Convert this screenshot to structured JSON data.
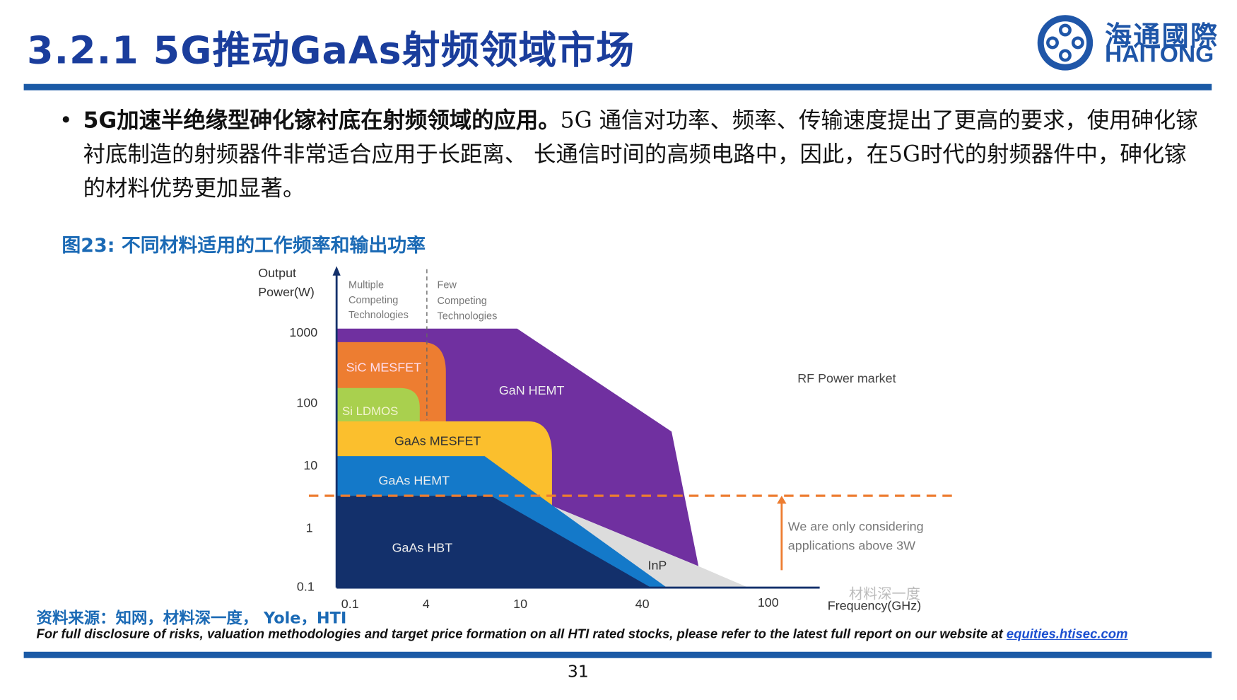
{
  "header": {
    "title": "3.2.1 5G推动GaAs射频领域市场",
    "logo_cn": "海通國際",
    "logo_en": "HAITONG"
  },
  "body": {
    "bullet_bold": "5G加速半绝缘型砷化镓衬底在射频领域的应用。",
    "bullet_text": "5G 通信对功率、频率、传输速度提出了更高的要求，使用砷化镓衬底制造的射频器件非常适合应用于长距离、 长通信时间的高频电路中，因此，在5G时代的射频器件中，砷化镓的材料优势更加显著。"
  },
  "figure": {
    "title": "图23:  不同材料适用的工作频率和输出功率"
  },
  "chart_data": {
    "type": "area",
    "title": "RF Power market",
    "ylabel": "Output Power(W)",
    "xlabel": "Frequency(GHz)",
    "y_ticks": [
      "1000",
      "100",
      "10",
      "1",
      "0.1"
    ],
    "x_ticks": [
      "0.1",
      "4",
      "10",
      "40",
      "100"
    ],
    "y_scale": "log",
    "x_scale": "log",
    "regions": [
      {
        "name": "GaN HEMT",
        "color": "#7030a0"
      },
      {
        "name": "SiC MESFET",
        "color": "#ed7d31"
      },
      {
        "name": "Si LDMOS",
        "color": "#a9d04e"
      },
      {
        "name": "GaAs MESFET",
        "color": "#fbbf2d"
      },
      {
        "name": "InP",
        "color": "#dcdcdc"
      },
      {
        "name": "GaAs HEMT",
        "color": "#1479c9"
      },
      {
        "name": "GaAs HBT",
        "color": "#13306b"
      }
    ],
    "annotations": {
      "multiple": "Multiple Competing Technologies",
      "few": "Few Competing Technologies",
      "threshold": "We are only considering applications above 3W",
      "threshold_w": 3,
      "watermark": "材料深一度"
    }
  },
  "footer": {
    "source": "资料来源：知网，材料深一度， Yole，HTI",
    "disclaimer": "For full disclosure of risks, valuation methodologies and target price formation on all HTI rated stocks, please refer to the latest full report on our website at ",
    "link": "equities.htisec.com",
    "page": "31"
  }
}
